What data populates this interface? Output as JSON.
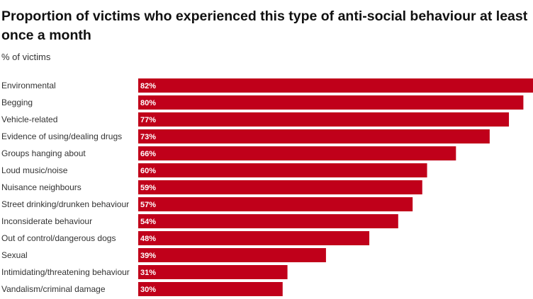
{
  "chart_data": {
    "type": "bar",
    "orientation": "horizontal",
    "title": "Proportion of victims who experienced this type of anti-social behaviour at least once a month",
    "subtitle": "% of victims",
    "value_suffix": "%",
    "xlim": [
      0,
      82
    ],
    "grid": false,
    "legend": "none",
    "bar_color": "#c0001a",
    "categories": [
      "Environmental",
      "Begging",
      "Vehicle-related",
      "Evidence of using/dealing drugs",
      "Groups hanging about",
      "Loud music/noise",
      "Nuisance neighbours",
      "Street drinking/drunken behaviour",
      "Inconsiderate behaviour",
      "Out of control/dangerous dogs",
      "Sexual",
      "Intimidating/threatening behaviour",
      "Vandalism/criminal damage"
    ],
    "values": [
      82,
      80,
      77,
      73,
      66,
      60,
      59,
      57,
      54,
      48,
      39,
      31,
      30
    ]
  }
}
